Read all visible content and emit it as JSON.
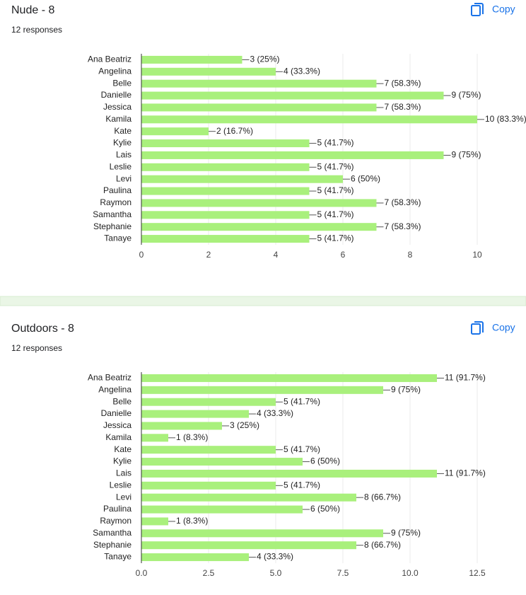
{
  "chart_data": [
    {
      "type": "bar",
      "title": "Nude - 8",
      "subtitle": "12 responses",
      "action": "Copy",
      "orientation": "horizontal",
      "categories": [
        "Ana Beatriz",
        "Angelina",
        "Belle",
        "Danielle",
        "Jessica",
        "Kamila",
        "Kate",
        "Kylie",
        "Lais",
        "Leslie",
        "Levi",
        "Paulina",
        "Raymon",
        "Samantha",
        "Stephanie",
        "Tanaye"
      ],
      "values": [
        3,
        4,
        7,
        9,
        7,
        10,
        2,
        5,
        9,
        5,
        6,
        5,
        7,
        5,
        7,
        5
      ],
      "value_labels": [
        "3 (25%)",
        "4 (33.3%)",
        "7 (58.3%)",
        "9 (75%)",
        "7 (58.3%)",
        "10 (83.3%)",
        "2 (16.7%)",
        "5 (41.7%)",
        "9 (75%)",
        "5 (41.7%)",
        "6 (50%)",
        "5 (41.7%)",
        "7 (58.3%)",
        "5 (41.7%)",
        "7 (58.3%)",
        "5 (41.7%)"
      ],
      "color": "#a9f07c",
      "xlim": [
        0,
        10
      ],
      "xticks": [
        0,
        2,
        4,
        6,
        8,
        10
      ],
      "grid": true
    },
    {
      "type": "bar",
      "title": "Outdoors - 8",
      "subtitle": "12 responses",
      "action": "Copy",
      "orientation": "horizontal",
      "categories": [
        "Ana Beatriz",
        "Angelina",
        "Belle",
        "Danielle",
        "Jessica",
        "Kamila",
        "Kate",
        "Kylie",
        "Lais",
        "Leslie",
        "Levi",
        "Paulina",
        "Raymon",
        "Samantha",
        "Stephanie",
        "Tanaye"
      ],
      "values": [
        11,
        9,
        5,
        4,
        3,
        1,
        5,
        6,
        11,
        5,
        8,
        6,
        1,
        9,
        8,
        4
      ],
      "value_labels": [
        "11 (91.7%)",
        "9 (75%)",
        "5 (41.7%)",
        "4 (33.3%)",
        "3 (25%)",
        "1 (8.3%)",
        "5 (41.7%)",
        "6 (50%)",
        "11 (91.7%)",
        "5 (41.7%)",
        "8 (66.7%)",
        "6 (50%)",
        "1 (8.3%)",
        "9 (75%)",
        "8 (66.7%)",
        "4 (33.3%)"
      ],
      "color": "#a9f07c",
      "xlim": [
        0,
        12.5
      ],
      "xticks": [
        {
          "value": 0,
          "label": "0.0"
        },
        2.5,
        {
          "value": 5,
          "label": "5.0"
        },
        7.5,
        {
          "value": 10,
          "label": "10.0"
        },
        12.5
      ],
      "grid": true
    }
  ]
}
